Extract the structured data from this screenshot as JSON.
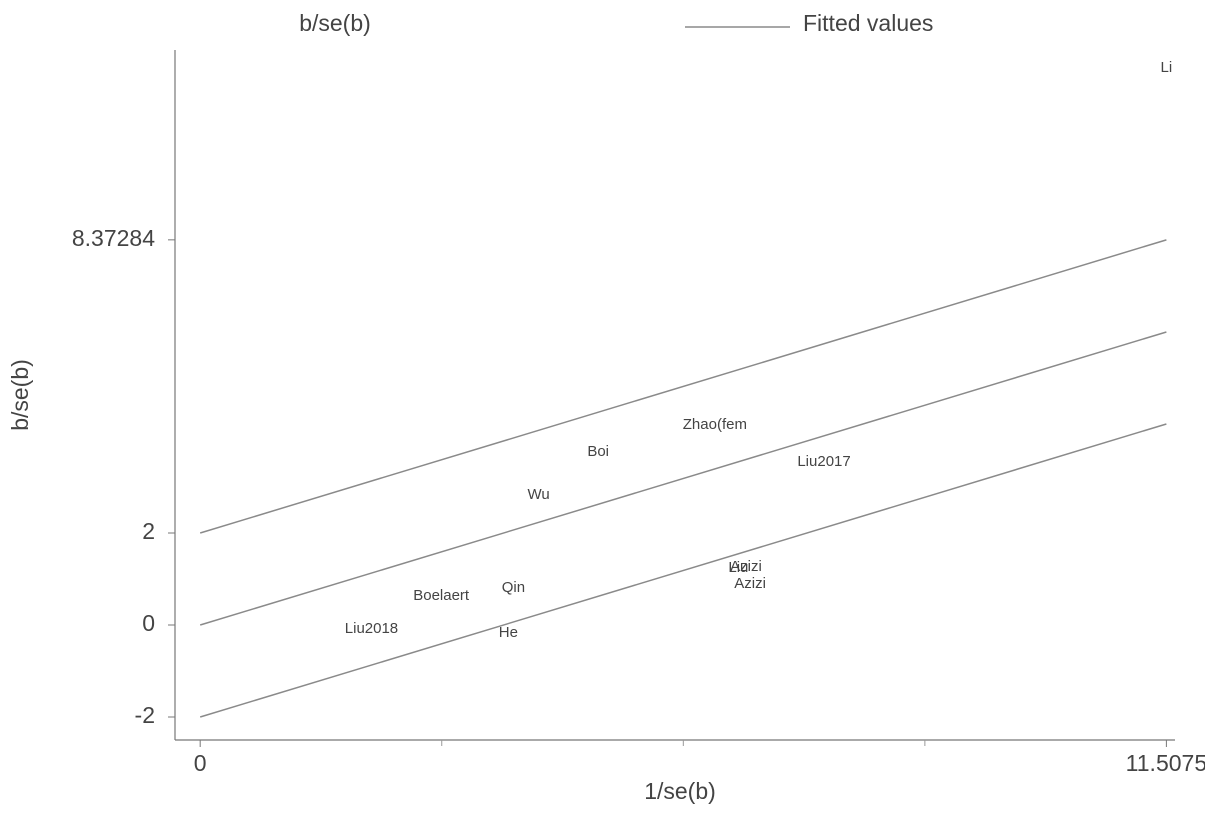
{
  "chart_data": {
    "type": "scatter",
    "xlabel": "1/se(b)",
    "ylabel": "b/se(b)",
    "xlim": [
      -0.3,
      11.61
    ],
    "ylim": [
      -2.5,
      12.5
    ],
    "xticks": [
      0,
      11.5075
    ],
    "xminor": [
      2.877,
      5.754,
      8.631
    ],
    "yticks": [
      -2,
      0,
      2,
      8.37284
    ],
    "series": [
      {
        "name": "b/se(b)",
        "color": "#444444",
        "labels": [
          "Li",
          "Zhao(fem",
          "Boi",
          "Liu2017",
          "Wu",
          "Azizi",
          "Liu",
          "Azizi",
          "Qin",
          "Boelaert",
          "Liu2018",
          "He"
        ],
        "x": [
          11.5075,
          6.13,
          4.74,
          7.43,
          4.03,
          6.5,
          6.41,
          6.55,
          3.73,
          2.87,
          2.04,
          3.67
        ],
        "values": [
          12.11,
          4.35,
          3.76,
          3.54,
          2.83,
          1.26,
          1.24,
          0.89,
          0.8,
          0.63,
          -0.09,
          -0.17
        ]
      },
      {
        "name": "Fitted values",
        "color": "#8a8a8a",
        "x": [
          0,
          11.5075
        ],
        "values": [
          0,
          6.37
        ]
      }
    ],
    "bands": [
      {
        "color": "#8a8a8a",
        "x": [
          0,
          11.5075
        ],
        "values": [
          2,
          8.37284
        ]
      },
      {
        "color": "#8a8a8a",
        "x": [
          0,
          11.5075
        ],
        "values": [
          -2,
          4.37
        ]
      }
    ]
  }
}
